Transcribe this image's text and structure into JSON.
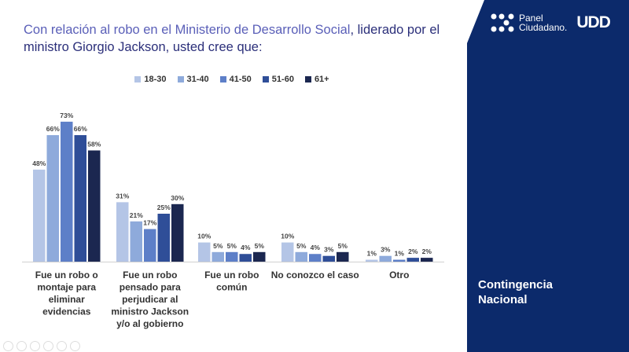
{
  "title": {
    "part1": "Con relación al robo en el Ministerio de Desarrollo Social",
    "part2": ", liderado por el ministro Giorgio Jackson, usted cree que:"
  },
  "brand": {
    "logo_line1": "Panel",
    "logo_line2": "Ciudadano.",
    "udd": "UDD",
    "section_line1": "Contingencia",
    "section_line2": "Nacional",
    "panel_color": "#0c2a6b"
  },
  "chart_data": {
    "type": "bar",
    "categories": [
      "Fue un robo o montaje para eliminar evidencias",
      "Fue un robo pensado para perjudicar al ministro Jackson y/o al gobierno",
      "Fue un robo común",
      "No conozco el caso",
      "Otro"
    ],
    "category_lines": [
      [
        "Fue un robo o",
        "montaje para",
        "eliminar",
        "evidencias"
      ],
      [
        "Fue un robo",
        "pensado para",
        "perjudicar al",
        "ministro Jackson",
        "y/o al gobierno"
      ],
      [
        "Fue un robo",
        "común"
      ],
      [
        "No conozco el caso"
      ],
      [
        "Otro"
      ]
    ],
    "series": [
      {
        "name": "18-30",
        "color": "#b4c5e6",
        "values": [
          48,
          31,
          10,
          10,
          1
        ]
      },
      {
        "name": "31-40",
        "color": "#8eaadb",
        "values": [
          66,
          21,
          5,
          5,
          3
        ]
      },
      {
        "name": "41-50",
        "color": "#5d7fc8",
        "values": [
          73,
          17,
          5,
          4,
          1
        ]
      },
      {
        "name": "51-60",
        "color": "#2f4e98",
        "values": [
          66,
          25,
          4,
          3,
          2
        ]
      },
      {
        "name": "61+",
        "color": "#1b2750",
        "values": [
          58,
          30,
          5,
          5,
          2
        ]
      }
    ],
    "unit": "%",
    "ylim": [
      0,
      80
    ],
    "legend": "top",
    "grid": false
  }
}
